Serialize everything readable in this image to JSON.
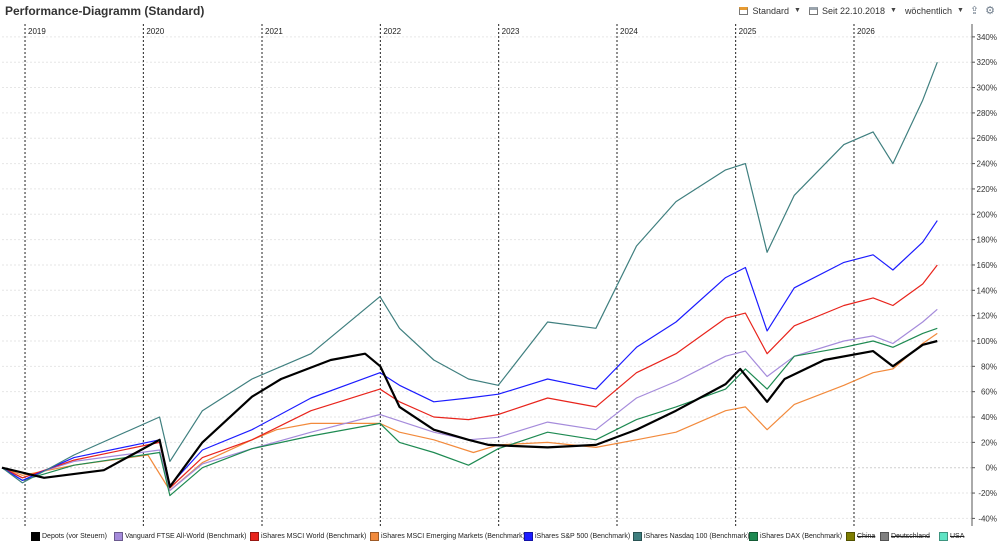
{
  "header": {
    "title": "Performance-Diagramm (Standard)",
    "view_label": "Standard",
    "date_label": "Seit 22.10.2018",
    "interval_label": "wöchentlich"
  },
  "chart_data": {
    "type": "line",
    "title": "Performance-Diagramm (Standard)",
    "x_axis": {
      "type": "time",
      "start": "2018-10-22",
      "end": "2026-12-31",
      "year_labels": [
        "2019",
        "2020",
        "2021",
        "2022",
        "2023",
        "2024",
        "2025",
        "2026"
      ]
    },
    "y_axis": {
      "ylim": [
        -46,
        347
      ],
      "unit": "%",
      "ticks": [
        "-40%",
        "-20%",
        "0%",
        "20%",
        "40%",
        "60%",
        "80%",
        "100%",
        "120%",
        "140%",
        "160%",
        "180%",
        "200%",
        "220%",
        "240%",
        "260%",
        "280%",
        "300%",
        "320%",
        "340%"
      ],
      "grid": true,
      "position": "right"
    },
    "legend_position": "bottom",
    "series": [
      {
        "name": "Depots (vor Steuern)",
        "color": "#000000",
        "hidden": false,
        "points": [
          [
            "2018-10-22",
            0
          ],
          [
            "2019-03-01",
            -8
          ],
          [
            "2019-09-01",
            -2
          ],
          [
            "2020-02-20",
            22
          ],
          [
            "2020-03-23",
            -15
          ],
          [
            "2020-07-01",
            20
          ],
          [
            "2020-12-01",
            56
          ],
          [
            "2021-03-01",
            70
          ],
          [
            "2021-08-01",
            85
          ],
          [
            "2021-11-15",
            90
          ],
          [
            "2022-01-01",
            80
          ],
          [
            "2022-03-01",
            48
          ],
          [
            "2022-06-15",
            30
          ],
          [
            "2022-09-30",
            22
          ],
          [
            "2022-12-01",
            18
          ],
          [
            "2023-06-01",
            16
          ],
          [
            "2023-10-28",
            18
          ],
          [
            "2024-03-01",
            30
          ],
          [
            "2024-07-01",
            45
          ],
          [
            "2024-12-01",
            66
          ],
          [
            "2025-01-15",
            78
          ],
          [
            "2025-04-08",
            52
          ],
          [
            "2025-06-01",
            70
          ],
          [
            "2025-10-01",
            85
          ],
          [
            "2026-03-01",
            92
          ],
          [
            "2026-05-01",
            80
          ],
          [
            "2026-08-01",
            97
          ],
          [
            "2026-09-15",
            100
          ]
        ]
      },
      {
        "name": "Vanguard FTSE All-World (Benchmark)",
        "color": "#a58bdb",
        "hidden": false,
        "points": [
          [
            "2018-10-22",
            0
          ],
          [
            "2018-12-24",
            -8
          ],
          [
            "2019-06-01",
            5
          ],
          [
            "2020-02-20",
            14
          ],
          [
            "2020-03-23",
            -18
          ],
          [
            "2020-07-01",
            3
          ],
          [
            "2020-12-01",
            15
          ],
          [
            "2021-06-01",
            28
          ],
          [
            "2021-12-31",
            42
          ],
          [
            "2022-06-15",
            28
          ],
          [
            "2022-09-30",
            22
          ],
          [
            "2022-12-31",
            24
          ],
          [
            "2023-06-01",
            36
          ],
          [
            "2023-10-28",
            30
          ],
          [
            "2024-03-01",
            55
          ],
          [
            "2024-07-01",
            68
          ],
          [
            "2024-12-01",
            88
          ],
          [
            "2025-01-31",
            92
          ],
          [
            "2025-04-08",
            72
          ],
          [
            "2025-07-01",
            88
          ],
          [
            "2025-12-01",
            100
          ],
          [
            "2026-03-01",
            104
          ],
          [
            "2026-05-01",
            98
          ],
          [
            "2026-08-01",
            115
          ],
          [
            "2026-09-15",
            125
          ]
        ]
      },
      {
        "name": "iShares MSCI World (Benchmark)",
        "color": "#e8241c",
        "hidden": false,
        "points": [
          [
            "2018-10-22",
            0
          ],
          [
            "2018-12-24",
            -8
          ],
          [
            "2019-06-01",
            6
          ],
          [
            "2020-02-20",
            20
          ],
          [
            "2020-03-23",
            -16
          ],
          [
            "2020-07-01",
            8
          ],
          [
            "2020-12-01",
            22
          ],
          [
            "2021-06-01",
            45
          ],
          [
            "2021-12-31",
            62
          ],
          [
            "2022-03-01",
            52
          ],
          [
            "2022-06-15",
            40
          ],
          [
            "2022-09-30",
            38
          ],
          [
            "2022-12-31",
            42
          ],
          [
            "2023-06-01",
            55
          ],
          [
            "2023-10-28",
            48
          ],
          [
            "2024-03-01",
            75
          ],
          [
            "2024-07-01",
            90
          ],
          [
            "2024-12-01",
            118
          ],
          [
            "2025-01-31",
            122
          ],
          [
            "2025-04-08",
            90
          ],
          [
            "2025-07-01",
            112
          ],
          [
            "2025-12-01",
            128
          ],
          [
            "2026-03-01",
            134
          ],
          [
            "2026-05-01",
            128
          ],
          [
            "2026-08-01",
            145
          ],
          [
            "2026-09-15",
            160
          ]
        ]
      },
      {
        "name": "iShares MSCI Emerging Markets (Benchmark)",
        "color": "#f28a3c",
        "hidden": false,
        "points": [
          [
            "2018-10-22",
            0
          ],
          [
            "2018-12-24",
            -6
          ],
          [
            "2019-06-01",
            2
          ],
          [
            "2020-01-15",
            10
          ],
          [
            "2020-03-23",
            -18
          ],
          [
            "2020-07-01",
            4
          ],
          [
            "2020-12-01",
            22
          ],
          [
            "2021-02-15",
            30
          ],
          [
            "2021-06-01",
            35
          ],
          [
            "2021-12-31",
            35
          ],
          [
            "2022-03-01",
            28
          ],
          [
            "2022-06-15",
            22
          ],
          [
            "2022-10-15",
            12
          ],
          [
            "2022-12-31",
            18
          ],
          [
            "2023-06-01",
            20
          ],
          [
            "2023-10-28",
            16
          ],
          [
            "2024-03-01",
            22
          ],
          [
            "2024-07-01",
            28
          ],
          [
            "2024-12-01",
            45
          ],
          [
            "2025-01-31",
            48
          ],
          [
            "2025-04-08",
            30
          ],
          [
            "2025-07-01",
            50
          ],
          [
            "2025-12-01",
            65
          ],
          [
            "2026-03-01",
            75
          ],
          [
            "2026-05-01",
            78
          ],
          [
            "2026-08-01",
            98
          ],
          [
            "2026-09-15",
            106
          ]
        ]
      },
      {
        "name": "iShares S&P 500 (Benchmark)",
        "color": "#1c1cff",
        "hidden": false,
        "points": [
          [
            "2018-10-22",
            0
          ],
          [
            "2018-12-24",
            -10
          ],
          [
            "2019-06-01",
            8
          ],
          [
            "2020-02-20",
            22
          ],
          [
            "2020-03-23",
            -14
          ],
          [
            "2020-07-01",
            14
          ],
          [
            "2020-12-01",
            30
          ],
          [
            "2021-06-01",
            55
          ],
          [
            "2021-12-31",
            75
          ],
          [
            "2022-03-01",
            65
          ],
          [
            "2022-06-15",
            52
          ],
          [
            "2022-09-30",
            55
          ],
          [
            "2022-12-31",
            58
          ],
          [
            "2023-06-01",
            70
          ],
          [
            "2023-10-28",
            62
          ],
          [
            "2024-03-01",
            95
          ],
          [
            "2024-07-01",
            115
          ],
          [
            "2024-12-01",
            150
          ],
          [
            "2025-01-31",
            158
          ],
          [
            "2025-04-08",
            108
          ],
          [
            "2025-07-01",
            142
          ],
          [
            "2025-12-01",
            162
          ],
          [
            "2026-03-01",
            168
          ],
          [
            "2026-05-01",
            156
          ],
          [
            "2026-08-01",
            178
          ],
          [
            "2026-09-15",
            195
          ]
        ]
      },
      {
        "name": "iShares Nasdaq 100 (Benchmark)",
        "color": "#3f7f7f",
        "hidden": false,
        "points": [
          [
            "2018-10-22",
            0
          ],
          [
            "2018-12-24",
            -12
          ],
          [
            "2019-06-01",
            10
          ],
          [
            "2020-02-20",
            40
          ],
          [
            "2020-03-23",
            5
          ],
          [
            "2020-07-01",
            45
          ],
          [
            "2020-12-01",
            70
          ],
          [
            "2021-06-01",
            90
          ],
          [
            "2021-12-31",
            135
          ],
          [
            "2022-03-01",
            110
          ],
          [
            "2022-06-15",
            85
          ],
          [
            "2022-09-30",
            70
          ],
          [
            "2022-12-31",
            65
          ],
          [
            "2023-06-01",
            115
          ],
          [
            "2023-10-28",
            110
          ],
          [
            "2024-03-01",
            175
          ],
          [
            "2024-07-01",
            210
          ],
          [
            "2024-12-01",
            235
          ],
          [
            "2025-01-31",
            240
          ],
          [
            "2025-04-08",
            170
          ],
          [
            "2025-07-01",
            215
          ],
          [
            "2025-12-01",
            255
          ],
          [
            "2026-03-01",
            265
          ],
          [
            "2026-05-01",
            240
          ],
          [
            "2026-08-01",
            290
          ],
          [
            "2026-09-15",
            320
          ]
        ]
      },
      {
        "name": "iShares DAX (Benchmark)",
        "color": "#1e8a52",
        "hidden": false,
        "points": [
          [
            "2018-10-22",
            0
          ],
          [
            "2018-12-24",
            -10
          ],
          [
            "2019-06-01",
            2
          ],
          [
            "2020-02-20",
            12
          ],
          [
            "2020-03-23",
            -22
          ],
          [
            "2020-07-01",
            0
          ],
          [
            "2020-12-01",
            15
          ],
          [
            "2021-06-01",
            25
          ],
          [
            "2021-12-31",
            35
          ],
          [
            "2022-03-01",
            20
          ],
          [
            "2022-06-15",
            12
          ],
          [
            "2022-09-30",
            2
          ],
          [
            "2022-12-31",
            15
          ],
          [
            "2023-06-01",
            28
          ],
          [
            "2023-10-28",
            22
          ],
          [
            "2024-03-01",
            38
          ],
          [
            "2024-07-01",
            48
          ],
          [
            "2024-12-01",
            62
          ],
          [
            "2025-01-31",
            78
          ],
          [
            "2025-04-08",
            62
          ],
          [
            "2025-07-01",
            88
          ],
          [
            "2025-12-01",
            95
          ],
          [
            "2026-03-01",
            100
          ],
          [
            "2026-05-01",
            95
          ],
          [
            "2026-08-01",
            106
          ],
          [
            "2026-09-15",
            110
          ]
        ]
      },
      {
        "name": "China",
        "color": "#7d7d00",
        "hidden": true,
        "points": []
      },
      {
        "name": "Deutschland",
        "color": "#808080",
        "hidden": true,
        "points": []
      },
      {
        "name": "USA",
        "color": "#5fe3c4",
        "hidden": true,
        "points": []
      }
    ]
  }
}
